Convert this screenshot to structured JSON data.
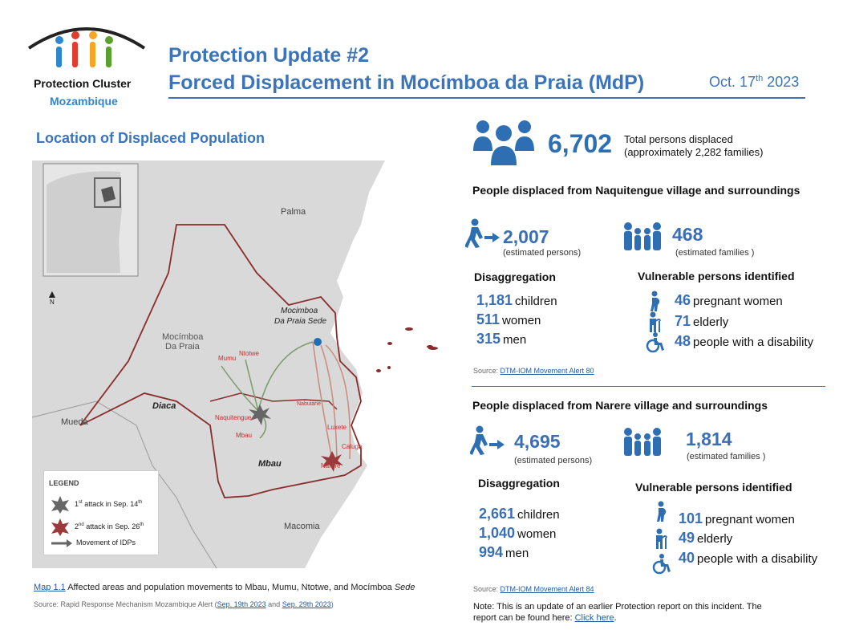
{
  "logo": {
    "line1": "Protection Cluster",
    "line2": "Mozambique"
  },
  "header": {
    "title1": "Protection Update #2",
    "title2": "Forced Displacement in Mocímboa da Praia (MdP)",
    "date_main": "Oct. 17",
    "date_sup": "th",
    "date_year": " 2023"
  },
  "map": {
    "heading": "Location of Displaced Population",
    "places": {
      "palma": "Palma",
      "mocimboa_sede_1": "Mocimboa",
      "mocimboa_sede_2": "Da Praia Sede",
      "mocimboa_dist_1": "Mocímboa",
      "mocimboa_dist_2": "Da Praia",
      "diaca": "Diaca",
      "mueda": "Mueda",
      "mbau_region": "Mbau",
      "macomia": "Macomia",
      "mumu": "Mumu",
      "ntotwe": "Ntotwe",
      "naquitengue": "Naquitengue",
      "mbau_village": "Mbau",
      "nabuiane": "Nabuiane",
      "luxete": "Luxete",
      "caluga": "Caluga",
      "narere": "Narere",
      "north": "N"
    },
    "legend": {
      "title": "LEGEND",
      "attack1_pre": "1",
      "attack1_sup": "st",
      "attack1_post": " attack in Sep. 14",
      "attack1_sup2": "th",
      "attack2_pre": "2",
      "attack2_sup": "nd",
      "attack2_post": "  attack in Sep. 26",
      "attack2_sup2": "th",
      "movement": "Movement of IDPs"
    },
    "caption_link": "Map 1.1",
    "caption_text": " Affected areas and population movements to Mbau, Mumu, Ntotwe, and Mocímboa ",
    "caption_italic": "Sede",
    "source_pre": "Source: Rapid Response Mechanism Mozambique Alert (",
    "source_link1": "Sep. 19th 2023",
    "source_and": " and ",
    "source_link2": "Sep. 29th 2023",
    "source_post": ")"
  },
  "total": {
    "value": "6,702",
    "label1": "Total persons displaced",
    "label2": "(approximately 2,282 families)"
  },
  "naquitengue": {
    "heading": "People displaced from Naquitengue village and surroundings",
    "persons_value": "2,007",
    "persons_label": "(estimated persons)",
    "families_value": "468",
    "families_label": "(estimated families )",
    "disagg_heading": "Disaggregation",
    "disagg": [
      {
        "value": "1,181",
        "label": "children"
      },
      {
        "value": "511",
        "label": "women"
      },
      {
        "value": "315",
        "label": "men"
      }
    ],
    "vuln_heading": "Vulnerable persons identified",
    "vuln": [
      {
        "value": "46",
        "label": "pregnant women"
      },
      {
        "value": "71",
        "label": "elderly"
      },
      {
        "value": "48",
        "label": "people with a disability"
      }
    ],
    "source_pre": "Source: ",
    "source_link": "DTM-IOM Movement Alert 80"
  },
  "narere": {
    "heading": "People displaced from Narere village and surroundings",
    "persons_value": "4,695",
    "persons_label": "(estimated persons)",
    "families_value": "1,814",
    "families_label": "(estimated families )",
    "disagg_heading": "Disaggregation",
    "disagg": [
      {
        "value": "2,661",
        "label": "children"
      },
      {
        "value": "1,040",
        "label": "women"
      },
      {
        "value": "994",
        "label": "men"
      }
    ],
    "vuln_heading": "Vulnerable persons identified",
    "vuln": [
      {
        "value": "101",
        "label": "pregnant women"
      },
      {
        "value": "49",
        "label": "elderly"
      },
      {
        "value": "40",
        "label": "people with a disability"
      }
    ],
    "source_pre": "Source: ",
    "source_link": "DTM-IOM Movement Alert 84"
  },
  "note": {
    "line1": "Note: This is an update of an earlier Protection report on this incident. The",
    "line2_pre": "report can be found here: ",
    "link": "Click here",
    "line2_post": "."
  },
  "colors": {
    "accent": "#3b74b8",
    "attack1": "#666666",
    "attack2": "#9b3a3a",
    "border": "#8b2c2c"
  }
}
